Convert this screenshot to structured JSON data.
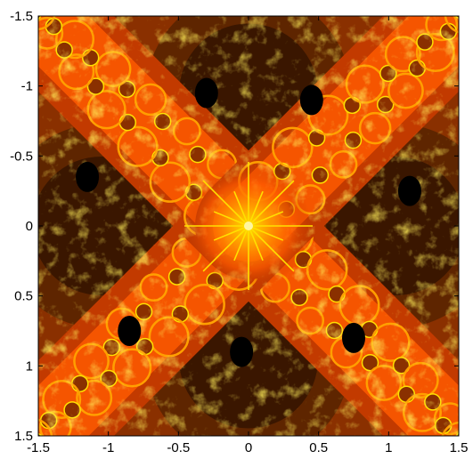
{
  "chart_data": {
    "type": "heatmap",
    "title": "",
    "xlabel": "",
    "ylabel": "",
    "xlim": [
      -1.5,
      1.5
    ],
    "ylim": [
      -1.5,
      1.5
    ],
    "y_axis_direction": "down",
    "grid": false,
    "legend": "none",
    "xticks": [
      {
        "value": -1.5,
        "label": "-1.5"
      },
      {
        "value": -1,
        "label": "-1"
      },
      {
        "value": -0.5,
        "label": "-0.5"
      },
      {
        "value": 0,
        "label": "0"
      },
      {
        "value": 0.5,
        "label": "0.5"
      },
      {
        "value": 1,
        "label": "1"
      },
      {
        "value": 1.5,
        "label": "1.5"
      }
    ],
    "yticks": [
      {
        "value": -1.5,
        "label": "-1.5"
      },
      {
        "value": -1,
        "label": "-1"
      },
      {
        "value": -0.5,
        "label": "-0.5"
      },
      {
        "value": 0,
        "label": "0"
      },
      {
        "value": 0.5,
        "label": "0.5"
      },
      {
        "value": 1,
        "label": "1"
      },
      {
        "value": 1.5,
        "label": "1.5"
      }
    ],
    "colormap": [
      "#000000",
      "#3a1600",
      "#5e2500",
      "#8a3000",
      "#c23a00",
      "#ff5a00",
      "#ff9f00",
      "#ffe000"
    ],
    "symmetry": "8-fold",
    "arms_angles_deg": [
      45,
      135,
      225,
      315
    ],
    "center_star": {
      "x": 0,
      "y": 0
    },
    "black_basins": [
      {
        "x": -0.3,
        "y": -0.95
      },
      {
        "x": 0.45,
        "y": -0.9
      },
      {
        "x": -1.15,
        "y": -0.35
      },
      {
        "x": 1.15,
        "y": -0.25
      },
      {
        "x": -0.85,
        "y": 0.75
      },
      {
        "x": 0.75,
        "y": 0.8
      },
      {
        "x": -0.05,
        "y": 0.9
      }
    ]
  }
}
